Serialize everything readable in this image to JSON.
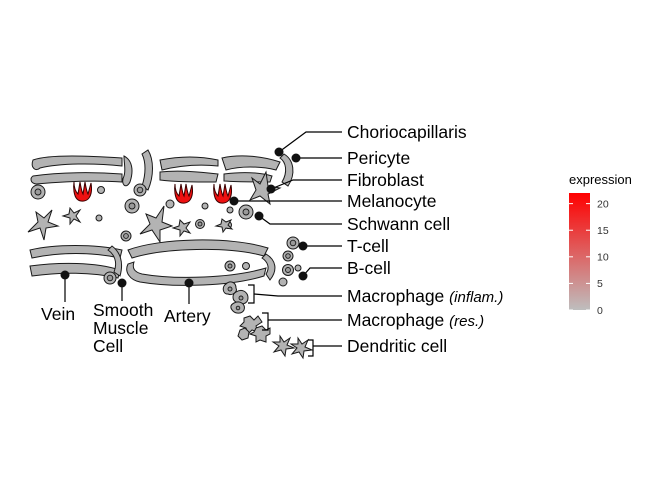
{
  "labels": {
    "choriocapillaris": "Choriocapillaris",
    "pericyte": "Pericyte",
    "fibroblast": "Fibroblast",
    "melanocyte": "Melanocyte",
    "schwann_cell": "Schwann cell",
    "t_cell": "T-cell",
    "b_cell": "B-cell",
    "macrophage": "Macrophage",
    "macrophage_inflam": "(inflam.)",
    "macrophage_res": "(res.)",
    "dendritic_cell": "Dendritic cell",
    "vein": "Vein",
    "smooth_muscle_line1": "Smooth",
    "smooth_muscle_line2": "Muscle",
    "smooth_muscle_line3": "Cell",
    "artery": "Artery"
  },
  "legend": {
    "title": "expression",
    "ticks": [
      "0",
      "5",
      "10",
      "15",
      "20"
    ],
    "tick_values": [
      0,
      5,
      10,
      15,
      20
    ],
    "min": 0,
    "max": 22,
    "low_color": "#bebebe",
    "high_color": "#ff0000"
  },
  "colors": {
    "cell_fill": "#b3b3b3",
    "highlight": "#ee1111"
  }
}
